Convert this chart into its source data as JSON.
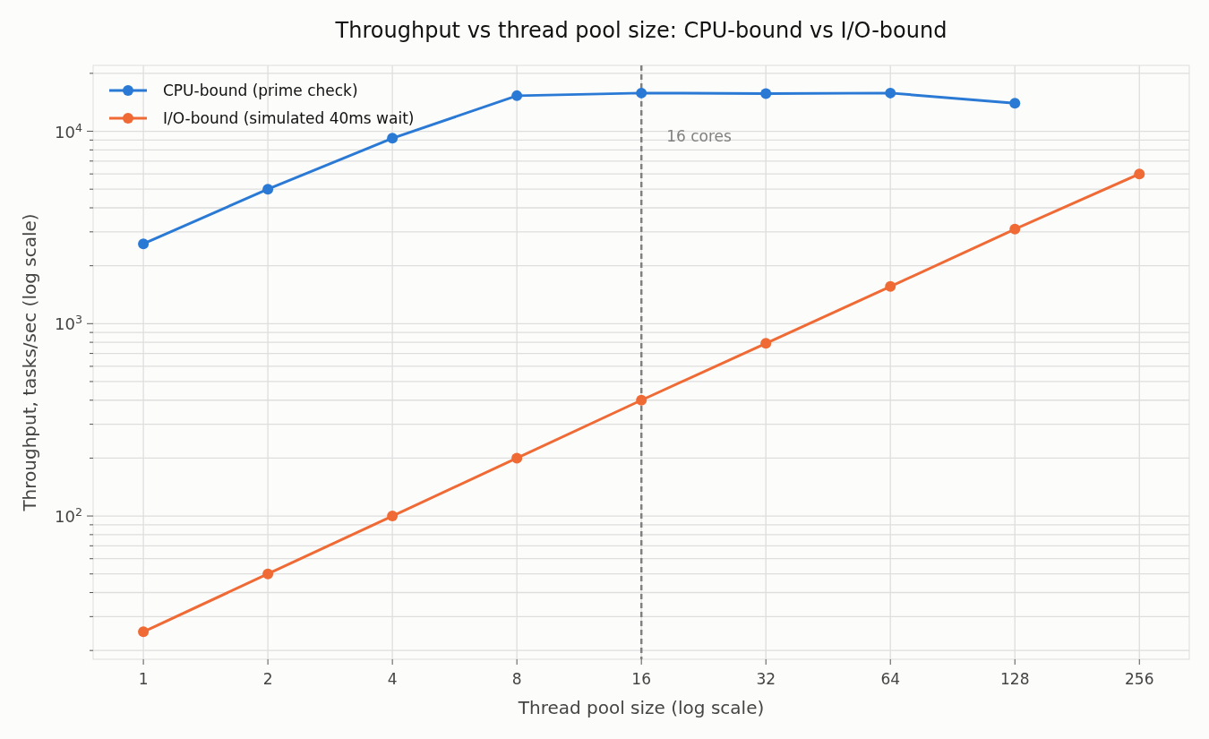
{
  "chart_data": {
    "type": "line",
    "title": "Throughput vs thread pool size: CPU-bound vs I/O-bound",
    "xlabel": "Thread pool size (log scale)",
    "ylabel": "Throughput, tasks/sec (log scale)",
    "x": [
      1,
      2,
      4,
      8,
      16,
      32,
      64,
      128,
      256
    ],
    "series": [
      {
        "name": "CPU-bound (prime check)",
        "color": "#2a7ad5",
        "values": [
          2600,
          5000,
          9200,
          15300,
          15800,
          15700,
          15800,
          14000,
          null
        ]
      },
      {
        "name": "I/O-bound (simulated 40ms wait)",
        "color": "#f06a35",
        "values": [
          25,
          50,
          100,
          200,
          400,
          790,
          1560,
          3100,
          6000
        ]
      }
    ],
    "log": "xy",
    "xlim": [
      0.756,
      338
    ],
    "ylim": [
      18,
      22000
    ],
    "xticks": [
      1,
      2,
      4,
      8,
      16,
      32,
      64,
      128,
      256
    ],
    "yticks": [
      {
        "value": 20,
        "label": null
      },
      {
        "value": 30,
        "label": null
      },
      {
        "value": 40,
        "label": null
      },
      {
        "value": 50,
        "label": null
      },
      {
        "value": 60,
        "label": null
      },
      {
        "value": 70,
        "label": null
      },
      {
        "value": 80,
        "label": null
      },
      {
        "value": 90,
        "label": null
      },
      {
        "value": 100,
        "label": "10$^{2}$"
      },
      {
        "value": 200,
        "label": null
      },
      {
        "value": 300,
        "label": null
      },
      {
        "value": 400,
        "label": null
      },
      {
        "value": 500,
        "label": null
      },
      {
        "value": 600,
        "label": null
      },
      {
        "value": 700,
        "label": null
      },
      {
        "value": 800,
        "label": null
      },
      {
        "value": 900,
        "label": null
      },
      {
        "value": 1000,
        "label": "10$^{3}$"
      },
      {
        "value": 2000,
        "label": null
      },
      {
        "value": 3000,
        "label": null
      },
      {
        "value": 4000,
        "label": null
      },
      {
        "value": 5000,
        "label": null
      },
      {
        "value": 6000,
        "label": null
      },
      {
        "value": 7000,
        "label": null
      },
      {
        "value": 8000,
        "label": null
      },
      {
        "value": 9000,
        "label": null
      },
      {
        "value": 10000,
        "label": "10$^{4}$"
      },
      {
        "value": 20000,
        "label": null
      }
    ],
    "ref_lines": [
      {
        "axis": "x",
        "value": 16,
        "label": "16 cores",
        "color": "#808080",
        "line_style": "dashed"
      }
    ],
    "grid": true,
    "legend": "top left",
    "marker": "circle",
    "line_style": "solid"
  }
}
